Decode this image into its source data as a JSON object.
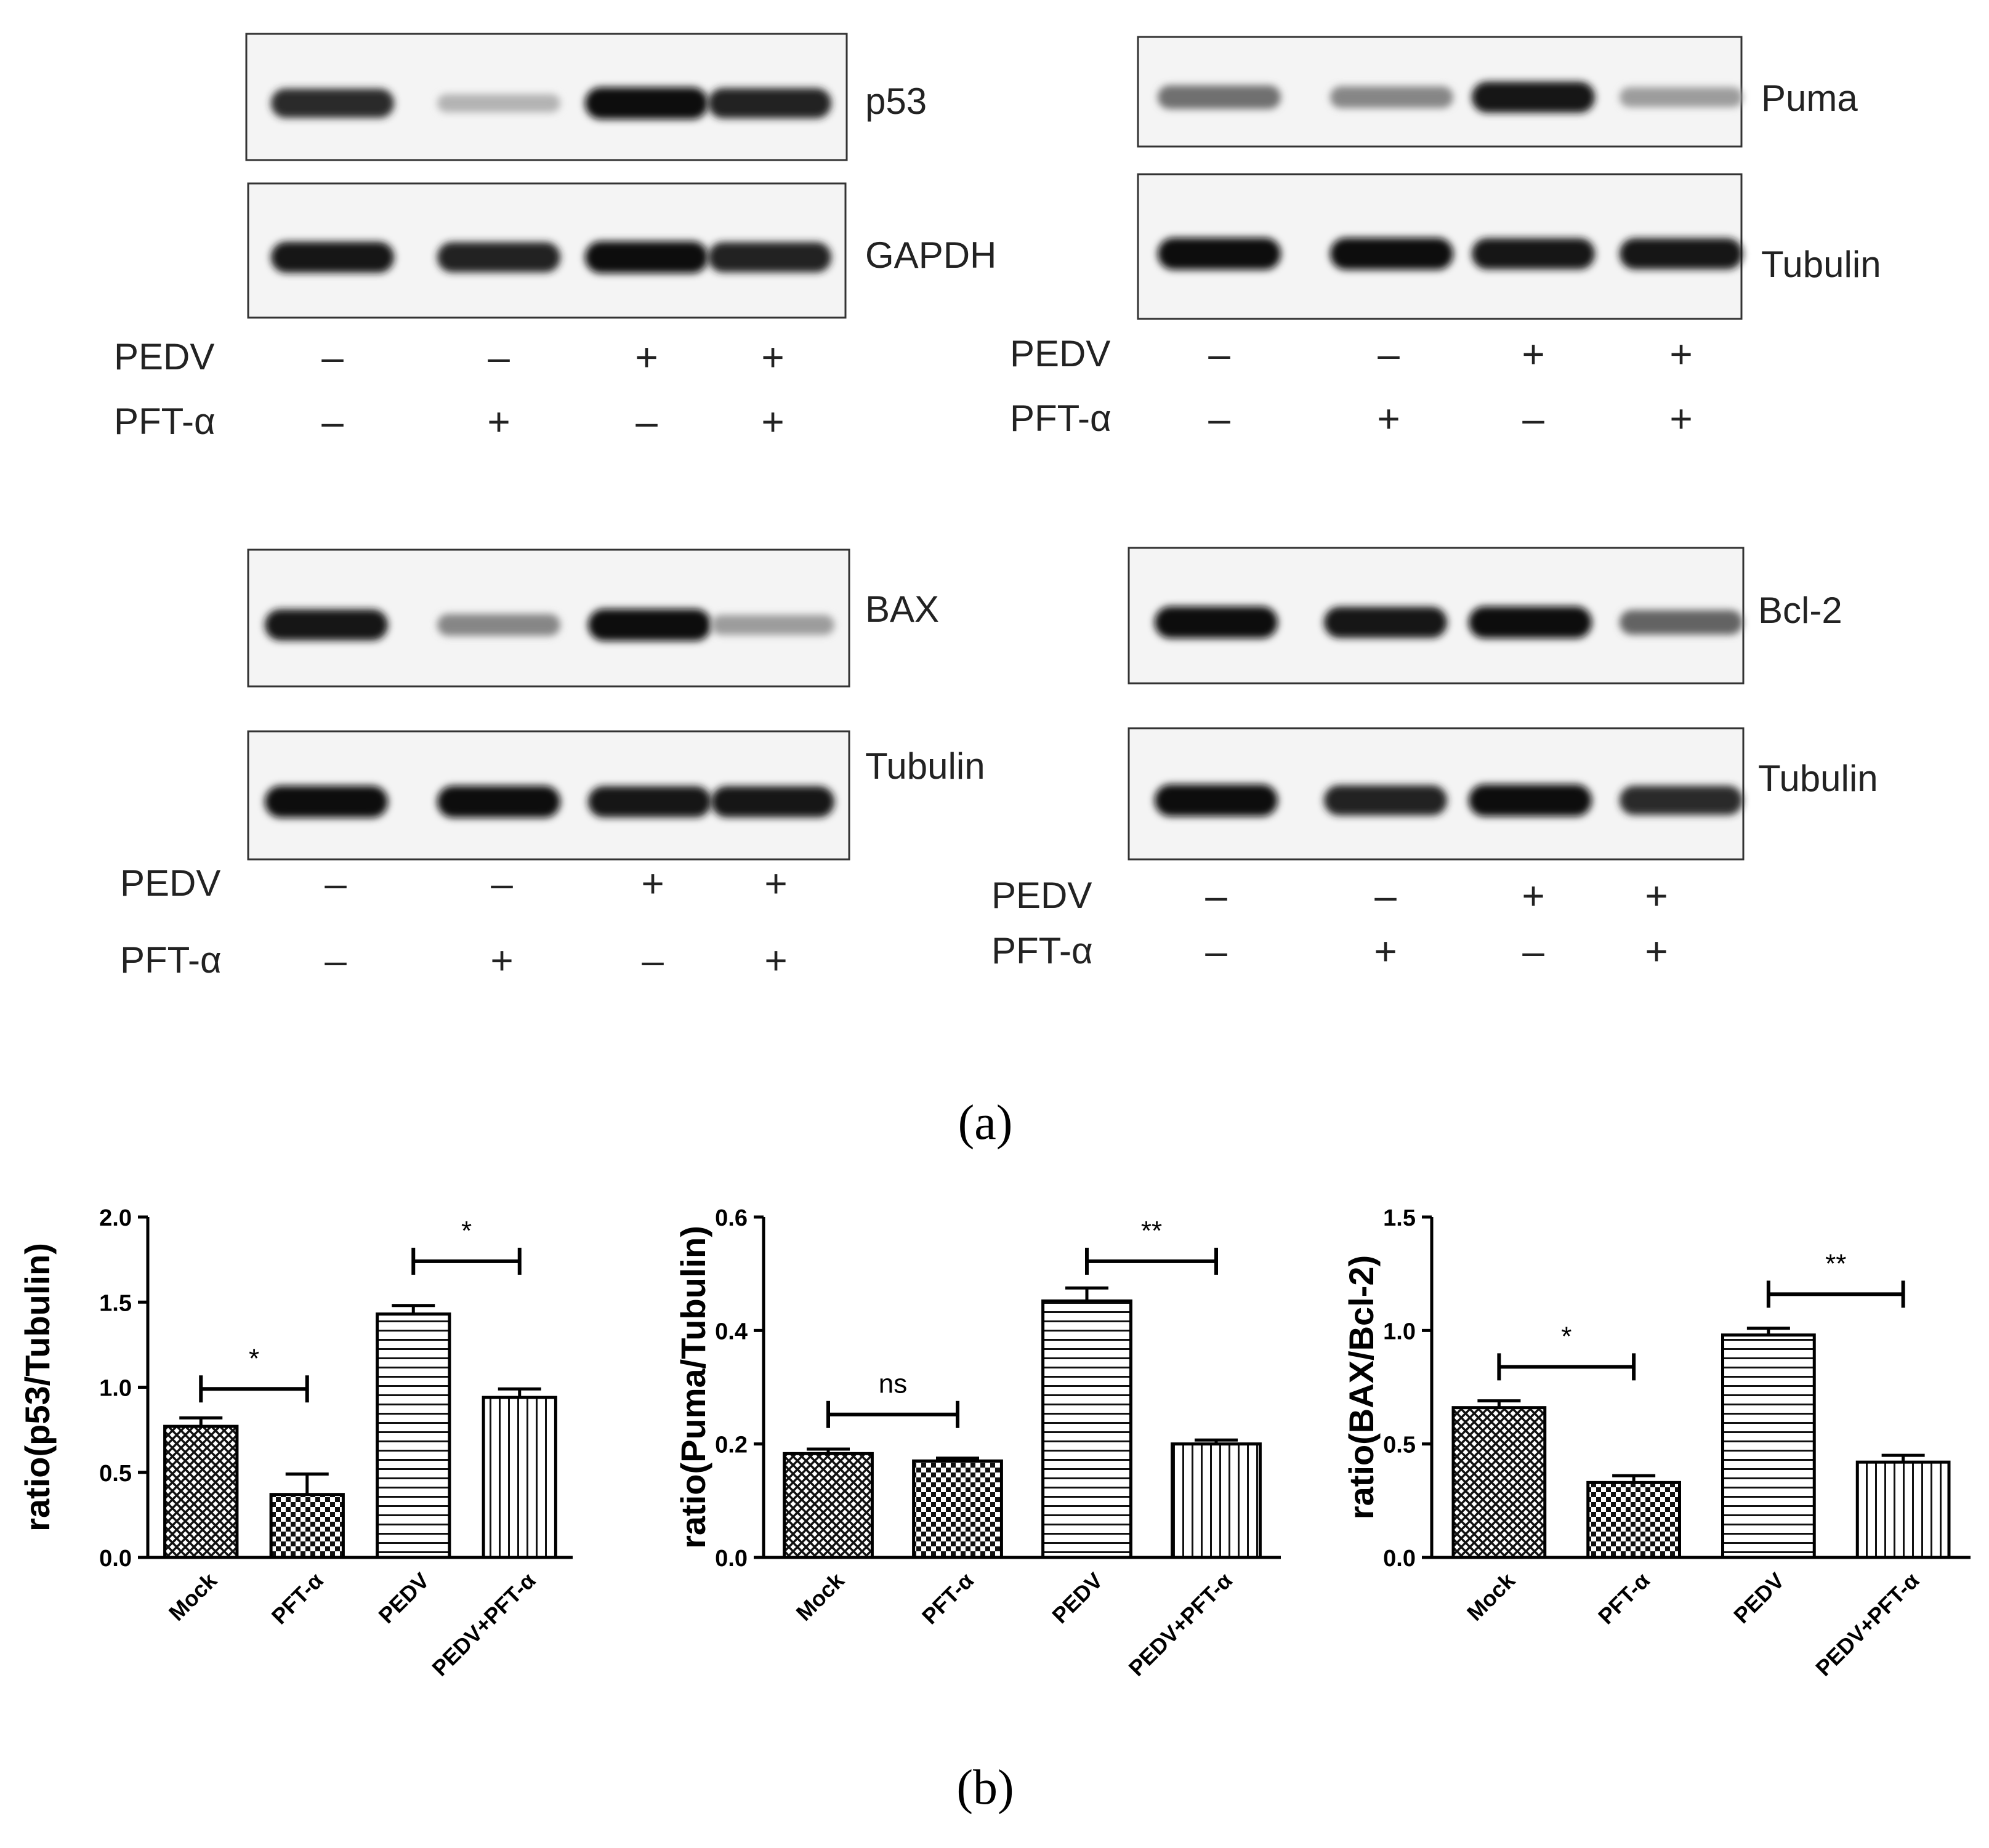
{
  "figure": {
    "panel_a_label": "(a)",
    "panel_b_label": "(b)"
  },
  "blots": [
    {
      "bands": [
        {
          "label": "p53",
          "intensities": [
            0.85,
            0.25,
            1.0,
            0.9
          ]
        },
        {
          "label": "GAPDH",
          "intensities": [
            0.95,
            0.9,
            1.0,
            0.9
          ]
        }
      ],
      "rows": [
        {
          "label": "PEDV",
          "signs": [
            "–",
            "–",
            "+",
            "+"
          ]
        },
        {
          "label": "PFT-α",
          "signs": [
            "–",
            "+",
            "–",
            "+"
          ]
        }
      ]
    },
    {
      "bands": [
        {
          "label": "Puma",
          "intensities": [
            0.55,
            0.45,
            0.95,
            0.35
          ]
        },
        {
          "label": "Tubulin",
          "intensities": [
            1.0,
            1.0,
            0.95,
            0.95
          ]
        }
      ],
      "rows": [
        {
          "label": "PEDV",
          "signs": [
            "–",
            "–",
            "+",
            "+"
          ]
        },
        {
          "label": "PFT-α",
          "signs": [
            "–",
            "+",
            "–",
            "+"
          ]
        }
      ]
    },
    {
      "bands": [
        {
          "label": "BAX",
          "intensities": [
            0.95,
            0.45,
            1.0,
            0.35
          ]
        },
        {
          "label": "Tubulin",
          "intensities": [
            1.0,
            1.0,
            0.95,
            0.95
          ]
        }
      ],
      "rows": [
        {
          "label": "PEDV",
          "signs": [
            "–",
            "–",
            "+",
            "+"
          ]
        },
        {
          "label": "PFT-α",
          "signs": [
            "–",
            "+",
            "–",
            "+"
          ]
        }
      ]
    },
    {
      "bands": [
        {
          "label": "Bcl-2",
          "intensities": [
            1.0,
            0.95,
            1.0,
            0.6
          ]
        },
        {
          "label": "Tubulin",
          "intensities": [
            1.0,
            0.9,
            1.0,
            0.85
          ]
        }
      ],
      "rows": [
        {
          "label": "PEDV",
          "signs": [
            "–",
            "–",
            "+",
            "+"
          ]
        },
        {
          "label": "PFT-α",
          "signs": [
            "–",
            "+",
            "–",
            "+"
          ]
        }
      ]
    }
  ],
  "chart_data": [
    {
      "type": "bar",
      "categories": [
        "Mock",
        "PFT-α",
        "PEDV",
        "PEDV+PFT-α"
      ],
      "values": [
        0.77,
        0.37,
        1.43,
        0.94
      ],
      "errors": [
        0.05,
        0.12,
        0.05,
        0.05
      ],
      "ylabel": "ratio(p53/Tubulin)",
      "ylim": [
        0,
        2.0
      ],
      "yticks": [
        "0.0",
        "0.5",
        "1.0",
        "1.5",
        "2.0"
      ],
      "patterns": [
        "crosshatch",
        "checker",
        "horizontal",
        "vertical"
      ],
      "significance": [
        {
          "from": 0,
          "to": 1,
          "label": "*",
          "y": 0.99
        },
        {
          "from": 2,
          "to": 3,
          "label": "*",
          "y": 1.74
        }
      ]
    },
    {
      "type": "bar",
      "categories": [
        "Mock",
        "PFT-α",
        "PEDV",
        "PEDV+PFT-α"
      ],
      "values": [
        0.183,
        0.17,
        0.452,
        0.2
      ],
      "errors": [
        0.008,
        0.005,
        0.023,
        0.007
      ],
      "ylabel": "ratio(Puma/Tubulin)",
      "ylim": [
        0,
        0.6
      ],
      "yticks": [
        "0.0",
        "0.2",
        "0.4",
        "0.6"
      ],
      "patterns": [
        "crosshatch",
        "checker",
        "horizontal",
        "vertical"
      ],
      "significance": [
        {
          "from": 0,
          "to": 1,
          "label": "ns",
          "y": 0.252
        },
        {
          "from": 2,
          "to": 3,
          "label": "**",
          "y": 0.522
        }
      ]
    },
    {
      "type": "bar",
      "categories": [
        "Mock",
        "PFT-α",
        "PEDV",
        "PEDV+PFT-α"
      ],
      "values": [
        0.66,
        0.33,
        0.98,
        0.42
      ],
      "errors": [
        0.03,
        0.03,
        0.03,
        0.03
      ],
      "ylabel": "ratio(BAX/Bcl-2)",
      "ylim": [
        0,
        1.5
      ],
      "yticks": [
        "0.0",
        "0.5",
        "1.0",
        "1.5"
      ],
      "patterns": [
        "crosshatch",
        "checker",
        "horizontal",
        "vertical"
      ],
      "significance": [
        {
          "from": 0,
          "to": 1,
          "label": "*",
          "y": 0.84
        },
        {
          "from": 2,
          "to": 3,
          "label": "**",
          "y": 1.16
        }
      ]
    }
  ]
}
